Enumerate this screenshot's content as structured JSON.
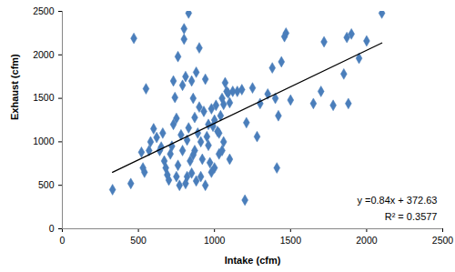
{
  "chart_data": {
    "type": "scatter",
    "xlabel": "Intake (cfm)",
    "ylabel": "Exhaust (cfm)",
    "xlim": [
      0,
      2500
    ],
    "ylim": [
      0,
      2500
    ],
    "xticks": [
      0,
      500,
      1000,
      1500,
      2000,
      2500
    ],
    "yticks": [
      0,
      500,
      1000,
      1500,
      2000,
      2500
    ],
    "grid": false,
    "annotations": [
      "y =0.84x + 372.63",
      "R² = 0.3577"
    ],
    "series": [
      {
        "type": "scatter",
        "color": "#4a7ebb",
        "marker": "diamond",
        "x": [
          330,
          450,
          470,
          520,
          530,
          540,
          550,
          570,
          600,
          620,
          650,
          660,
          670,
          680,
          690,
          700,
          710,
          720,
          730,
          740,
          750,
          760,
          760,
          770,
          780,
          790,
          800,
          800,
          810,
          810,
          820,
          820,
          830,
          830,
          840,
          850,
          850,
          860,
          870,
          870,
          880,
          880,
          890,
          900,
          900,
          910,
          910,
          920,
          930,
          940,
          940,
          950,
          960,
          970,
          980,
          990,
          1000,
          1000,
          1010,
          1020,
          1030,
          1040,
          1050,
          1050,
          1060,
          1070,
          1080,
          1090,
          1100,
          1100,
          1120,
          1150,
          1180,
          1200,
          1210,
          1250,
          1280,
          1300,
          1350,
          1380,
          1400,
          1410,
          1420,
          1440,
          1460,
          1470,
          1500,
          1650,
          1700,
          1720,
          1780,
          1850,
          1870,
          1880,
          1900,
          1950,
          2000,
          2100,
          580,
          640,
          730,
          790,
          960,
          1030,
          980,
          750,
          860,
          1060
        ],
        "values": [
          450,
          520,
          2190,
          880,
          700,
          650,
          1610,
          900,
          1150,
          1050,
          940,
          1100,
          780,
          700,
          620,
          560,
          860,
          950,
          1700,
          1510,
          1270,
          1980,
          730,
          500,
          1080,
          900,
          2300,
          2180,
          1750,
          520,
          600,
          1020,
          2480,
          1160,
          780,
          1700,
          640,
          1500,
          1280,
          900,
          1800,
          550,
          1100,
          2080,
          1400,
          1000,
          600,
          800,
          1350,
          1720,
          500,
          1060,
          960,
          760,
          1380,
          1180,
          1250,
          700,
          1420,
          1120,
          860,
          1300,
          900,
          1500,
          1000,
          1680,
          1580,
          1560,
          800,
          1450,
          1580,
          1580,
          1600,
          330,
          1220,
          1620,
          1060,
          1440,
          1550,
          1850,
          1500,
          700,
          1300,
          1920,
          2210,
          2250,
          1480,
          1440,
          1580,
          2150,
          1420,
          1780,
          2200,
          1440,
          2240,
          1960,
          2160,
          2480,
          1000,
          900,
          1200,
          1650,
          1200,
          1100,
          650,
          600,
          850,
          1430
        ]
      },
      {
        "type": "line",
        "color": "#000000",
        "line_style": "solid",
        "x": [
          330,
          2100
        ],
        "values": [
          649.83,
          2136.63
        ]
      }
    ]
  }
}
